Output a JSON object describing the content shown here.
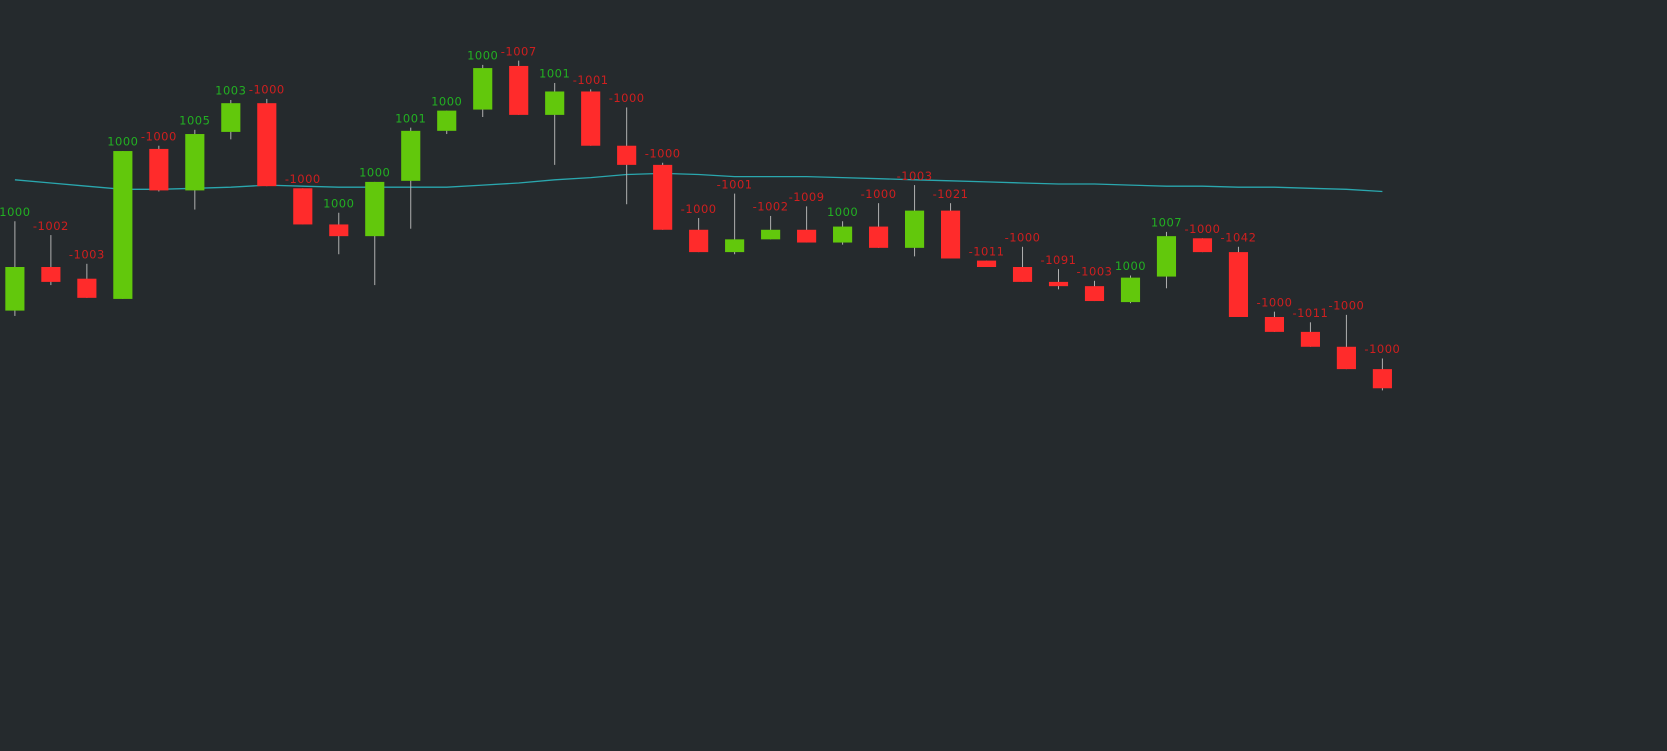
{
  "chart_data": {
    "type": "candlestick",
    "background": "#252a2d",
    "ylim": [
      0,
      706
    ],
    "up_color": "#62c80c",
    "down_color": "#ff2b2b",
    "up_label_color": "#22b022",
    "down_label_color": "#cf1f1f",
    "wick_color": "#b0b0b0",
    "open": [
      414,
      455,
      444,
      425,
      566,
      527,
      582,
      609,
      529,
      495,
      484,
      536,
      583,
      603,
      644,
      598,
      620,
      569,
      551,
      490,
      469,
      481,
      490,
      478,
      493,
      473,
      508,
      461,
      455,
      441,
      437,
      422,
      446,
      482,
      469,
      408,
      394,
      380,
      359
    ],
    "high": [
      498,
      485,
      458,
      564,
      569,
      584,
      612,
      613,
      529,
      506,
      535,
      586,
      602,
      645,
      649,
      628,
      622,
      605,
      553,
      501,
      524,
      503,
      512,
      498,
      515,
      532,
      515,
      461,
      474,
      453,
      442,
      447,
      488,
      482,
      474,
      413,
      403,
      410,
      369
    ],
    "low": [
      409,
      438,
      426,
      425,
      526,
      509,
      575,
      531,
      495,
      467,
      438,
      491,
      580,
      596,
      598,
      551,
      569,
      514,
      490,
      469,
      467,
      481,
      478,
      476,
      473,
      465,
      463,
      455,
      441,
      434,
      423,
      421,
      435,
      469,
      408,
      394,
      380,
      359,
      339
    ],
    "close": [
      455,
      441,
      426,
      564,
      527,
      580,
      609,
      531,
      495,
      484,
      535,
      583,
      602,
      642,
      598,
      620,
      569,
      551,
      490,
      469,
      481,
      490,
      478,
      493,
      473,
      508,
      463,
      455,
      441,
      437,
      423,
      445,
      484,
      469,
      408,
      394,
      380,
      359,
      341
    ],
    "labels": [
      1000,
      -1002,
      -1003,
      1000,
      -1000,
      1005,
      1003,
      -1000,
      -1000,
      1000,
      1000,
      1001,
      1000,
      1000,
      -1007,
      1001,
      -1001,
      -1000,
      -1000,
      -1000,
      -1001,
      -1002,
      -1009,
      1000,
      -1000,
      -1003,
      -1021,
      -1011,
      -1000,
      -1091,
      -1003,
      1000,
      1007,
      -1000,
      -1042,
      -1000,
      -1011,
      -1000,
      -1000
    ],
    "ma": {
      "color": "#2aa7ae",
      "values": [
        537,
        534,
        531,
        528,
        528,
        529,
        530,
        532,
        531,
        530,
        530,
        530,
        530,
        532,
        534,
        537,
        539,
        542,
        543,
        542,
        540,
        540,
        540,
        539,
        538,
        537,
        536,
        535,
        534,
        533,
        533,
        532,
        531,
        531,
        530,
        530,
        529,
        528,
        526
      ]
    }
  }
}
